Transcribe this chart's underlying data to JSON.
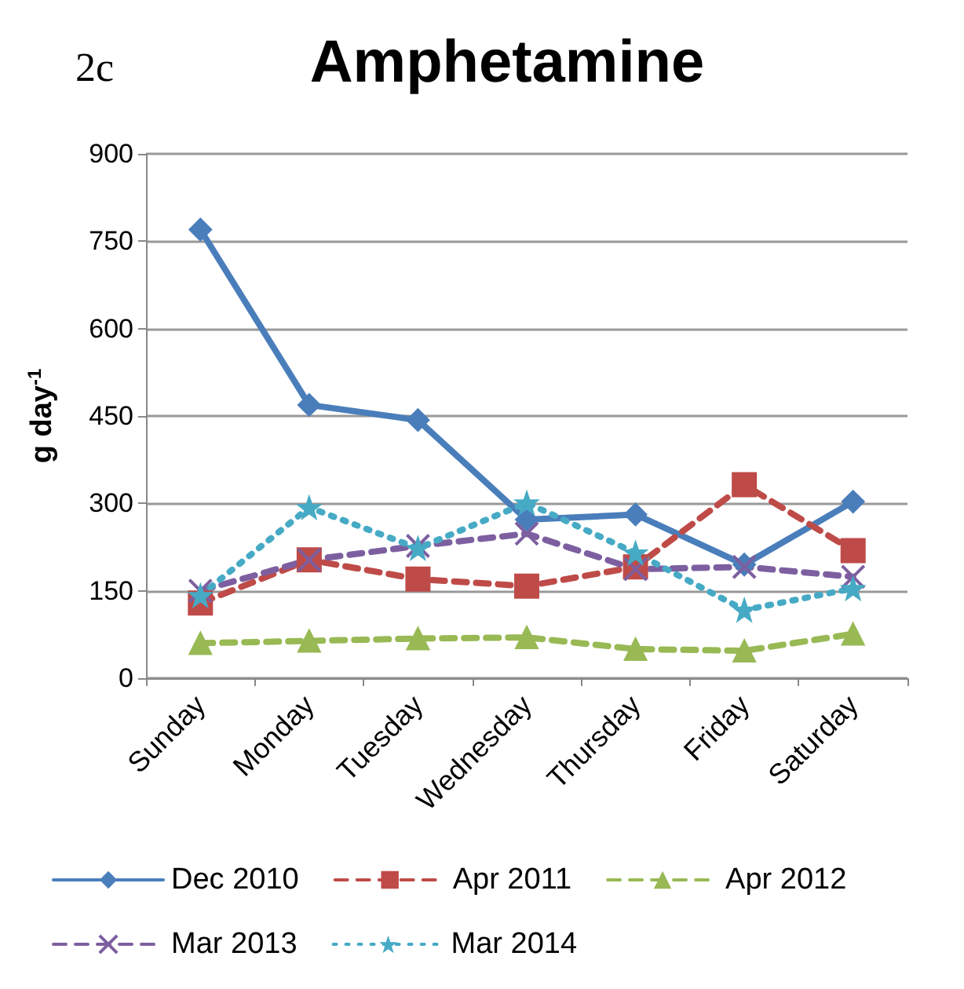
{
  "chart_data": {
    "type": "line",
    "title": "Amphetamine",
    "annotations": [
      "2c"
    ],
    "ylabel": "g day$^{-1}$",
    "categories": [
      "Sunday",
      "Monday",
      "Tuesday",
      "Wednesday",
      "Thursday",
      "Friday",
      "Saturday"
    ],
    "series": [
      {
        "name": "Dec 2010",
        "color": "#4a7ebb",
        "marker": "diamond",
        "line_style": "solid",
        "values": [
          770,
          469,
          443,
          272,
          281,
          195,
          303
        ]
      },
      {
        "name": "Apr 2011",
        "color": "#be4b48",
        "marker": "square",
        "line_style": "dashed",
        "values": [
          129,
          203,
          170,
          158,
          191,
          332,
          219
        ]
      },
      {
        "name": "Apr 2012",
        "color": "#98b954",
        "marker": "triangle",
        "line_style": "dashed",
        "values": [
          60,
          64,
          68,
          70,
          50,
          47,
          76
        ]
      },
      {
        "name": "Mar 2013",
        "color": "#7d5fa0",
        "marker": "cross",
        "line_style": "dashed",
        "values": [
          150,
          203,
          227,
          248,
          187,
          191,
          174
        ]
      },
      {
        "name": "Mar 2014",
        "color": "#46aac5",
        "marker": "star",
        "line_style": "dotted",
        "values": [
          142,
          293,
          223,
          301,
          215,
          117,
          154
        ]
      }
    ],
    "ylim": [
      0,
      900
    ],
    "yticks": [
      0,
      150,
      300,
      450,
      600,
      750,
      900
    ],
    "grid": "y",
    "legend": "bottom"
  }
}
